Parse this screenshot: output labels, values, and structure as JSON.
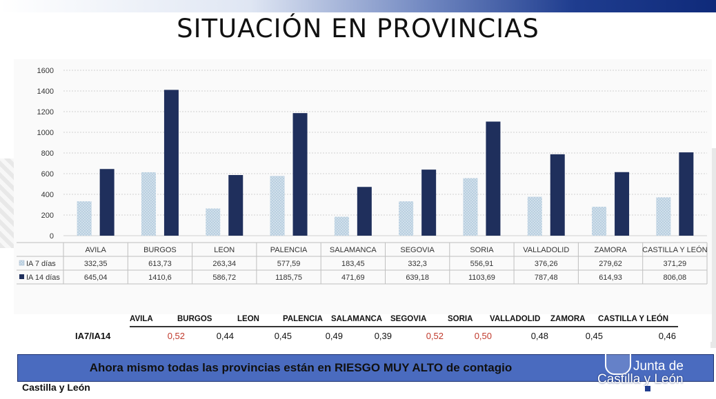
{
  "slide": {
    "title": "SITUACIÓN EN PROVINCIAS",
    "banner": "Ahora mismo todas las provincias están en RIESGO MUY ALTO de contagio",
    "footer_left": "Castilla y León",
    "logo_line1": "Junta de",
    "logo_line2": "Castilla y León"
  },
  "chart_data": {
    "type": "bar",
    "categories": [
      "AVILA",
      "BURGOS",
      "LEON",
      "PALENCIA",
      "SALAMANCA",
      "SEGOVIA",
      "SORIA",
      "VALLADOLID",
      "ZAMORA",
      "CASTILLA Y LEÓN"
    ],
    "series": [
      {
        "name": "IA 7 días",
        "values": [
          332.35,
          613.73,
          263.34,
          577.59,
          183.45,
          332.3,
          556.91,
          376.26,
          279.62,
          371.29
        ],
        "labels": [
          "332,35",
          "613,73",
          "263,34",
          "577,59",
          "183,45",
          "332,3",
          "556,91",
          "376,26",
          "279,62",
          "371,29"
        ],
        "color": "#b9cfe0"
      },
      {
        "name": "IA 14 días",
        "values": [
          645.04,
          1410.6,
          586.72,
          1185.75,
          471.69,
          639.18,
          1103.69,
          787.48,
          614.93,
          806.08
        ],
        "labels": [
          "645,04",
          "1410,6",
          "586,72",
          "1185,75",
          "471,69",
          "639,18",
          "1103,69",
          "787,48",
          "614,93",
          "806,08"
        ],
        "color": "#1f2f5c"
      }
    ],
    "ylim": [
      0,
      1600
    ],
    "yticks": [
      "0",
      "200",
      "400",
      "600",
      "800",
      "1000",
      "1200",
      "1400",
      "1600"
    ],
    "grid": true,
    "legend": "data-table",
    "ratio": {
      "label": "IA7/IA14",
      "headers": [
        "AVILA",
        "BURGOS",
        "LEON",
        "PALENCIA",
        "SALAMANCA",
        "SEGOVIA",
        "SORIA",
        "VALLADOLID",
        "ZAMORA",
        "CASTILLA Y LEÓN"
      ],
      "values": [
        "0,52",
        "0,44",
        "0,45",
        "0,49",
        "0,39",
        "0,52",
        "0,50",
        "0,48",
        "0,45",
        "0,46"
      ],
      "highlight_color": "#c0392b",
      "highlighted": [
        true,
        false,
        false,
        false,
        false,
        true,
        true,
        false,
        false,
        false
      ]
    }
  }
}
